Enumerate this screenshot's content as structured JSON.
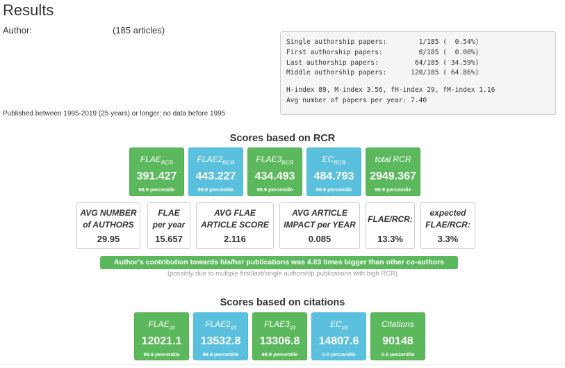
{
  "header": {
    "title": "Results",
    "author_label": "Author:",
    "article_count": "(185 articles)",
    "published": "Published between 1995-2019 (25 years) or longer; no data before 1995"
  },
  "stats_box": {
    "lines": [
      "Single authorship papers:        1/185 (  0.54%)",
      "First authorship papers:         0/185 (  0.00%)",
      "Last authorship papers:         64/185 ( 34.59%)",
      "Middle authorship papers:      120/185 ( 64.86%)"
    ],
    "lines2": [
      "H-index 89, M-index 3.56, fH-index 29, fM-index 1.16",
      "Avg number of papers per year: 7.40"
    ]
  },
  "rcr": {
    "title": "Scores based on RCR",
    "tiles": [
      {
        "name": "FLAE",
        "sub": "RCR",
        "value": "391.427",
        "percentile": "99.9 percentile",
        "color": "#5cb85c"
      },
      {
        "name": "FLAE2",
        "sub": "RCR",
        "value": "443.227",
        "percentile": "99.9 percentile",
        "color": "#5bc0de"
      },
      {
        "name": "FLAE3",
        "sub": "RCR",
        "value": "434.493",
        "percentile": "99.9 percentile",
        "color": "#5cb85c"
      },
      {
        "name": "EC",
        "sub": "RCR",
        "value": "484.793",
        "percentile": "99.9 percentile",
        "color": "#5bc0de"
      },
      {
        "name": "total RCR",
        "sub": "",
        "value": "2949.367",
        "percentile": "99.9 percentile",
        "color": "#5cb85c"
      }
    ],
    "stats": [
      {
        "line1": "AVG NUMBER",
        "line2": "of AUTHORS",
        "value": "29.95"
      },
      {
        "line1": "FLAE",
        "line2": "per year",
        "value": "15.657"
      },
      {
        "line1": "AVG FLAE",
        "line2": "ARTICLE SCORE",
        "value": "2.116"
      },
      {
        "line1": "AVG ARTICLE",
        "line2": "IMPACT per YEAR",
        "value": "0.085"
      },
      {
        "line1": "FLAE/RCR:",
        "line2": "",
        "value": "13.3%"
      },
      {
        "line1": "expected",
        "line2": "FLAE/RCR:",
        "value": "3.3%"
      }
    ],
    "contribution": "Author's contribution towards his/her publications was 4.03 times bigger than other co-authors",
    "contribution_note": "(possibly due to multiple first/last/single authorship publications with high RCR)"
  },
  "cit": {
    "title": "Scores based on citations",
    "tiles": [
      {
        "name": "FLAE",
        "sub": "cit",
        "value": "12021.1",
        "percentile": "99.9 percentile",
        "color": "#5cb85c"
      },
      {
        "name": "FLAE2",
        "sub": "cit",
        "value": "13532.8",
        "percentile": "99.9 percentile",
        "color": "#5bc0de"
      },
      {
        "name": "FLAE3",
        "sub": "cit",
        "value": "13306.8",
        "percentile": "99.9 percentile",
        "color": "#5cb85c"
      },
      {
        "name": "EC",
        "sub": "cit",
        "value": "14807.6",
        "percentile": "0.0 percentile",
        "color": "#5bc0de"
      },
      {
        "name": "Citations",
        "sub": "",
        "value": "90148",
        "percentile": "0.0 percentile",
        "color": "#5cb85c"
      }
    ]
  }
}
